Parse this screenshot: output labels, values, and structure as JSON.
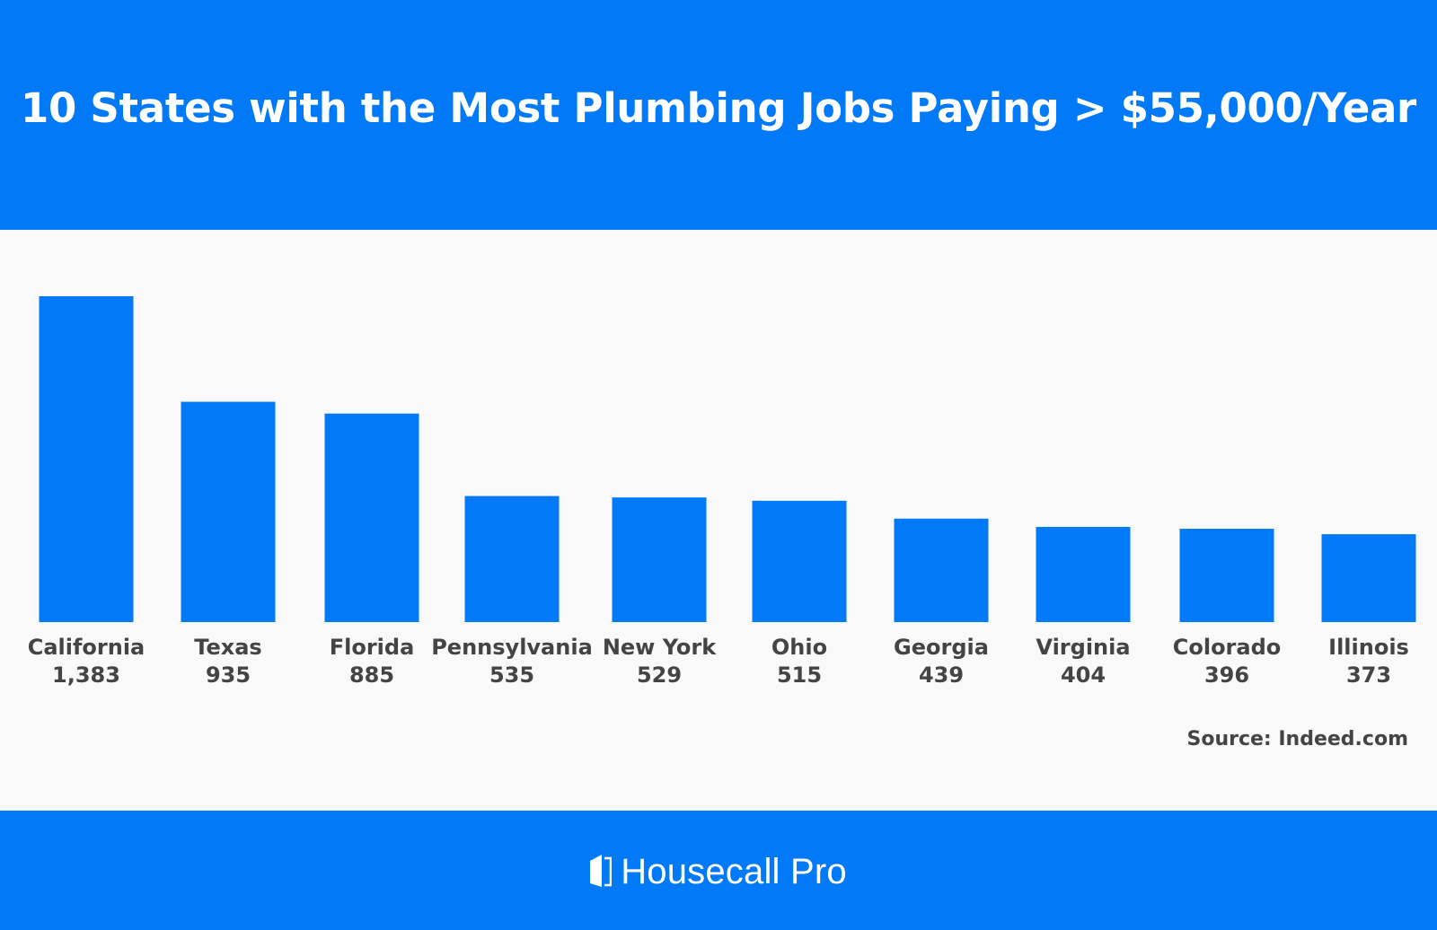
{
  "colors": {
    "brand_blue": "#027af7",
    "plot_background": "#f9f9f9",
    "label_text": "#444444",
    "title_text": "#ffffff"
  },
  "header": {
    "title": "10 States with the Most Plumbing Jobs Paying > $55,000/Year"
  },
  "source": "Source: Indeed.com",
  "footer": {
    "brand_name": "Housecall Pro",
    "logo_icon": "housecall-pro-logo-icon"
  },
  "chart_data": {
    "type": "bar",
    "title": "10 States with the Most Plumbing Jobs Paying > $55,000/Year",
    "xlabel": "",
    "ylabel": "",
    "categories": [
      "California",
      "Texas",
      "Florida",
      "Pennsylvania",
      "New York",
      "Ohio",
      "Georgia",
      "Virginia",
      "Colorado",
      "Illinois"
    ],
    "values": [
      1383,
      935,
      885,
      535,
      529,
      515,
      439,
      404,
      396,
      373
    ],
    "value_labels": [
      "1,383",
      "935",
      "885",
      "535",
      "529",
      "515",
      "439",
      "404",
      "396",
      "373"
    ],
    "ylim": [
      0,
      1383
    ],
    "grid": false,
    "legend": "none",
    "bar_color": "#027af7"
  }
}
